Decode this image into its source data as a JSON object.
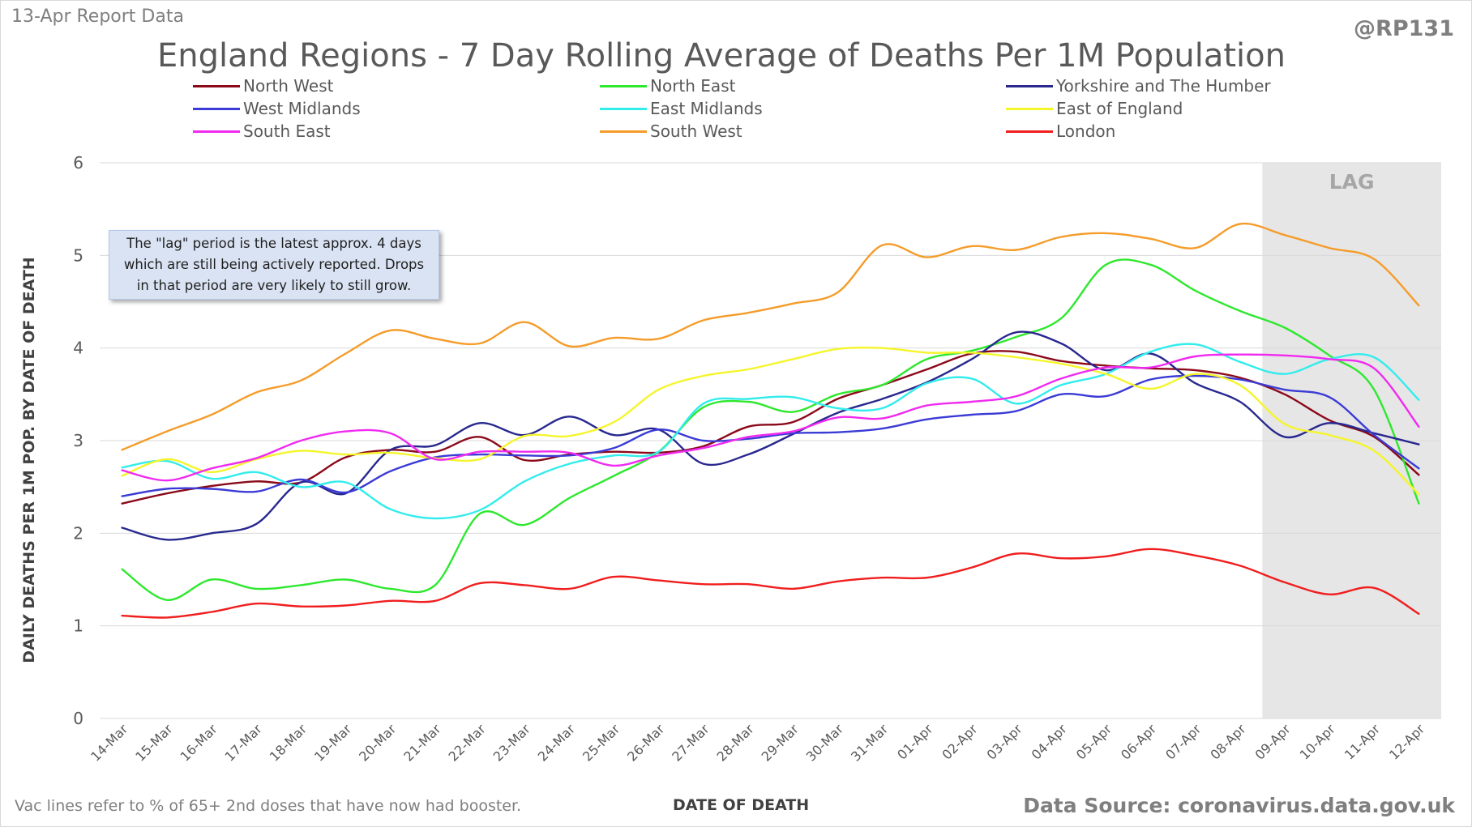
{
  "header": {
    "report_label": "13-Apr Report Data",
    "handle": "@RP131",
    "title": "England Regions - 7 Day Rolling Average of Deaths Per 1M Population"
  },
  "footer": {
    "vac_note": "Vac lines refer to % of 65+ 2nd doses that have now had booster.",
    "source": "Data Source: coronavirus.data.gov.uk"
  },
  "annotation": {
    "line1": "The \"lag\" period is the latest approx. 4 days",
    "line2": "which are still being actively reported.  Drops",
    "line3": "in that period are very likely to still grow."
  },
  "chart_data": {
    "type": "line",
    "title": "England Regions - 7 Day Rolling Average of Deaths Per 1M Population",
    "xlabel": "DATE OF DEATH",
    "ylabel": "DAILY DEATHS PER 1M POP. BY DATE OF DEATH",
    "ylim": [
      0,
      6
    ],
    "yticks": [
      0,
      1,
      2,
      3,
      4,
      5,
      6
    ],
    "grid": true,
    "legend_position": "top",
    "shaded_region": {
      "label": "LAG",
      "from": "09-Apr",
      "to": "12-Apr",
      "color": "#e6e6e6"
    },
    "categories": [
      "14-Mar",
      "15-Mar",
      "16-Mar",
      "17-Mar",
      "18-Mar",
      "19-Mar",
      "20-Mar",
      "21-Mar",
      "22-Mar",
      "23-Mar",
      "24-Mar",
      "25-Mar",
      "26-Mar",
      "27-Mar",
      "28-Mar",
      "29-Mar",
      "30-Mar",
      "31-Mar",
      "01-Apr",
      "02-Apr",
      "03-Apr",
      "04-Apr",
      "05-Apr",
      "06-Apr",
      "07-Apr",
      "08-Apr",
      "09-Apr",
      "10-Apr",
      "11-Apr",
      "12-Apr"
    ],
    "series": [
      {
        "name": "North West",
        "color": "#8b0a1a",
        "values": [
          2.32,
          2.43,
          2.51,
          2.56,
          2.55,
          2.82,
          2.9,
          2.88,
          3.04,
          2.79,
          2.85,
          2.88,
          2.87,
          2.94,
          3.15,
          3.2,
          3.45,
          3.6,
          3.77,
          3.94,
          3.96,
          3.86,
          3.81,
          3.78,
          3.76,
          3.68,
          3.5,
          3.22,
          3.04,
          2.63
        ]
      },
      {
        "name": "North East",
        "color": "#2ee82e",
        "values": [
          1.61,
          1.28,
          1.5,
          1.4,
          1.44,
          1.5,
          1.4,
          1.44,
          2.21,
          2.09,
          2.38,
          2.62,
          2.88,
          3.36,
          3.42,
          3.31,
          3.5,
          3.6,
          3.88,
          3.97,
          4.12,
          4.32,
          4.9,
          4.9,
          4.62,
          4.4,
          4.22,
          3.92,
          3.55,
          2.32
        ]
      },
      {
        "name": "Yorkshire and The Humber",
        "color": "#28288f",
        "values": [
          2.06,
          1.93,
          2.0,
          2.1,
          2.55,
          2.43,
          2.9,
          2.95,
          3.19,
          3.06,
          3.26,
          3.06,
          3.12,
          2.75,
          2.85,
          3.07,
          3.3,
          3.45,
          3.63,
          3.88,
          4.17,
          4.05,
          3.76,
          3.94,
          3.62,
          3.42,
          3.04,
          3.19,
          3.08,
          2.96
        ]
      },
      {
        "name": "West Midlands",
        "color": "#3b3bd6",
        "values": [
          2.4,
          2.48,
          2.48,
          2.45,
          2.58,
          2.44,
          2.67,
          2.82,
          2.85,
          2.84,
          2.84,
          2.92,
          3.12,
          3.0,
          3.02,
          3.08,
          3.09,
          3.13,
          3.23,
          3.28,
          3.32,
          3.5,
          3.48,
          3.66,
          3.7,
          3.66,
          3.55,
          3.47,
          3.06,
          2.7
        ]
      },
      {
        "name": "East Midlands",
        "color": "#33ecec",
        "values": [
          2.71,
          2.78,
          2.59,
          2.66,
          2.5,
          2.55,
          2.26,
          2.16,
          2.25,
          2.56,
          2.75,
          2.84,
          2.88,
          3.4,
          3.45,
          3.47,
          3.35,
          3.35,
          3.62,
          3.67,
          3.4,
          3.6,
          3.72,
          3.96,
          4.04,
          3.85,
          3.72,
          3.88,
          3.9,
          3.44
        ]
      },
      {
        "name": "East of England",
        "color": "#f5f52c",
        "values": [
          2.62,
          2.8,
          2.66,
          2.8,
          2.89,
          2.85,
          2.87,
          2.81,
          2.8,
          3.05,
          3.05,
          3.2,
          3.55,
          3.7,
          3.77,
          3.88,
          3.99,
          4.0,
          3.95,
          3.95,
          3.9,
          3.83,
          3.72,
          3.56,
          3.72,
          3.6,
          3.18,
          3.06,
          2.89,
          2.42
        ]
      },
      {
        "name": "South East",
        "color": "#f02af0",
        "values": [
          2.68,
          2.57,
          2.7,
          2.81,
          3.0,
          3.1,
          3.08,
          2.8,
          2.88,
          2.88,
          2.87,
          2.73,
          2.84,
          2.92,
          3.04,
          3.1,
          3.25,
          3.24,
          3.38,
          3.42,
          3.48,
          3.67,
          3.79,
          3.79,
          3.91,
          3.93,
          3.92,
          3.88,
          3.78,
          3.15
        ]
      },
      {
        "name": "South West",
        "color": "#f59c2a",
        "values": [
          2.9,
          3.1,
          3.28,
          3.52,
          3.65,
          3.94,
          4.19,
          4.1,
          4.05,
          4.28,
          4.02,
          4.11,
          4.1,
          4.3,
          4.38,
          4.48,
          4.6,
          5.11,
          4.98,
          5.1,
          5.06,
          5.2,
          5.24,
          5.18,
          5.08,
          5.34,
          5.22,
          5.08,
          4.96,
          4.46
        ]
      },
      {
        "name": "London",
        "color": "#f01e1e",
        "values": [
          1.11,
          1.09,
          1.15,
          1.24,
          1.21,
          1.22,
          1.27,
          1.27,
          1.46,
          1.44,
          1.4,
          1.53,
          1.49,
          1.45,
          1.45,
          1.4,
          1.48,
          1.52,
          1.52,
          1.63,
          1.78,
          1.73,
          1.75,
          1.83,
          1.76,
          1.65,
          1.47,
          1.34,
          1.41,
          1.13
        ]
      }
    ]
  }
}
